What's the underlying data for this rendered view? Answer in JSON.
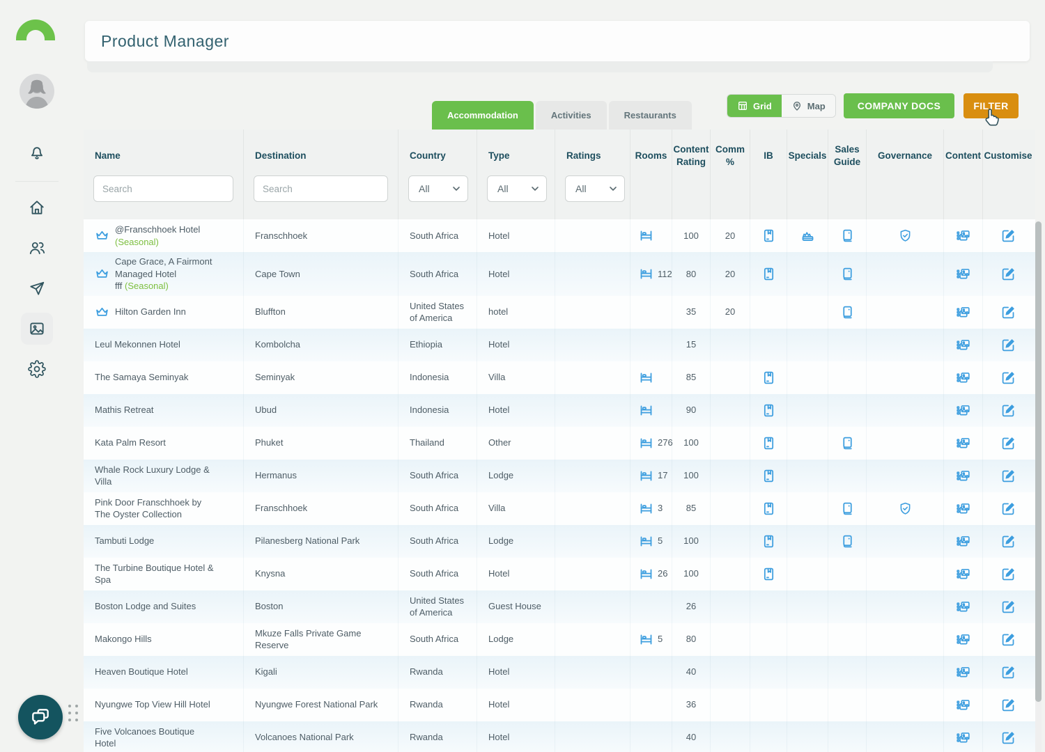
{
  "app": {
    "title": "Product Manager"
  },
  "colors": {
    "brand_green": "#6abf4c",
    "filter_orange": "#d98e10",
    "icon_blue": "#3d9edf",
    "teal_text": "#1d4e5e",
    "seasonal_green": "#7cbf3f",
    "chat_teal": "#14545f"
  },
  "sidebar": {
    "items": [
      {
        "name": "notifications-icon",
        "active": false
      },
      {
        "name": "home-icon",
        "active": false
      },
      {
        "name": "users-icon",
        "active": false
      },
      {
        "name": "send-icon",
        "active": false
      },
      {
        "name": "media-icon",
        "active": true
      },
      {
        "name": "settings-icon",
        "active": false
      }
    ],
    "chat_button": "chat-icon"
  },
  "toolbar": {
    "tabs": [
      {
        "label": "Accommodation",
        "active": true
      },
      {
        "label": "Activities",
        "active": false
      },
      {
        "label": "Restaurants",
        "active": false
      }
    ],
    "view_toggle": [
      {
        "label": "Grid",
        "icon": "grid-icon",
        "active": true
      },
      {
        "label": "Map",
        "icon": "map-pin-icon",
        "active": false
      }
    ],
    "company_docs_label": "COMPANY DOCS",
    "filter_label": "FILTER"
  },
  "table": {
    "columns": [
      "Name",
      "Destination",
      "Country",
      "Type",
      "Ratings",
      "Rooms",
      "Content Rating",
      "Comm %",
      "IB",
      "Specials",
      "Sales Guide",
      "Governance",
      "Content",
      "Customise"
    ],
    "filters": {
      "name_placeholder": "Search",
      "destination_placeholder": "Search",
      "country_value": "All",
      "type_value": "All",
      "ratings_value": "All"
    },
    "icon_legend": {
      "name_flag": "crown-icon",
      "rooms": "bed-icon",
      "ib": "book-bookmark-icon",
      "specials": "hamper-icon",
      "sales_guide": "guide-book-icon",
      "governance": "shield-check-icon",
      "content": "photos-icon",
      "customise": "edit-icon"
    },
    "rows": [
      {
        "crown": true,
        "name": "@Franschhoek Hotel",
        "seasonal": true,
        "sub": "",
        "destination": "Franschhoek",
        "country": "South Africa",
        "type": "Hotel",
        "bed": true,
        "rooms": "",
        "content_rating": "100",
        "comm": "20",
        "ib": true,
        "specials": true,
        "sales_guide": true,
        "governance": true
      },
      {
        "crown": true,
        "name": "Cape Grace, A Fairmont Managed Hotel",
        "seasonal": false,
        "sub": "fff",
        "sub_seasonal": true,
        "destination": "Cape Town",
        "country": "South Africa",
        "type": "Hotel",
        "bed": true,
        "rooms": "112",
        "content_rating": "80",
        "comm": "20",
        "ib": true,
        "specials": false,
        "sales_guide": true,
        "governance": false
      },
      {
        "crown": true,
        "name": "Hilton Garden Inn",
        "seasonal": false,
        "sub": "",
        "destination": "Bluffton",
        "country": "United States of America",
        "type": "hotel",
        "bed": false,
        "rooms": "",
        "content_rating": "35",
        "comm": "20",
        "ib": false,
        "specials": false,
        "sales_guide": true,
        "governance": false
      },
      {
        "crown": false,
        "name": "Leul Mekonnen Hotel",
        "seasonal": false,
        "sub": "",
        "destination": "Kombolcha",
        "country": "Ethiopia",
        "type": "Hotel",
        "bed": false,
        "rooms": "",
        "content_rating": "15",
        "comm": "",
        "ib": false,
        "specials": false,
        "sales_guide": false,
        "governance": false
      },
      {
        "crown": false,
        "name": "The Samaya Seminyak",
        "seasonal": false,
        "sub": "",
        "destination": "Seminyak",
        "country": "Indonesia",
        "type": "Villa",
        "bed": true,
        "rooms": "",
        "content_rating": "85",
        "comm": "",
        "ib": true,
        "specials": false,
        "sales_guide": false,
        "governance": false
      },
      {
        "crown": false,
        "name": "Mathis Retreat",
        "seasonal": false,
        "sub": "",
        "destination": "Ubud",
        "country": "Indonesia",
        "type": "Hotel",
        "bed": true,
        "rooms": "",
        "content_rating": "90",
        "comm": "",
        "ib": true,
        "specials": false,
        "sales_guide": false,
        "governance": false
      },
      {
        "crown": false,
        "name": "Kata Palm Resort",
        "seasonal": false,
        "sub": "",
        "destination": "Phuket",
        "country": "Thailand",
        "type": "Other",
        "bed": true,
        "rooms": "276",
        "content_rating": "100",
        "comm": "",
        "ib": true,
        "specials": false,
        "sales_guide": true,
        "governance": false
      },
      {
        "crown": false,
        "name": "Whale Rock Luxury Lodge & Villa",
        "seasonal": false,
        "sub": "",
        "destination": "Hermanus",
        "country": "South Africa",
        "type": "Lodge",
        "bed": true,
        "rooms": "17",
        "content_rating": "100",
        "comm": "",
        "ib": true,
        "specials": false,
        "sales_guide": false,
        "governance": false
      },
      {
        "crown": false,
        "name": "Pink Door Franschhoek by The Oyster Collection",
        "seasonal": false,
        "sub": "",
        "destination": "Franschhoek",
        "country": "South Africa",
        "type": "Villa",
        "bed": true,
        "rooms": "3",
        "content_rating": "85",
        "comm": "",
        "ib": true,
        "specials": false,
        "sales_guide": true,
        "governance": true
      },
      {
        "crown": false,
        "name": "Tambuti Lodge",
        "seasonal": false,
        "sub": "",
        "destination": "Pilanesberg National Park",
        "country": "South Africa",
        "type": "Lodge",
        "bed": true,
        "rooms": "5",
        "content_rating": "100",
        "comm": "",
        "ib": true,
        "specials": false,
        "sales_guide": true,
        "governance": false
      },
      {
        "crown": false,
        "name": "The Turbine Boutique Hotel & Spa",
        "seasonal": false,
        "sub": "",
        "destination": "Knysna",
        "country": "South Africa",
        "type": "Hotel",
        "bed": true,
        "rooms": "26",
        "content_rating": "100",
        "comm": "",
        "ib": true,
        "specials": false,
        "sales_guide": false,
        "governance": false
      },
      {
        "crown": false,
        "name": "Boston Lodge and Suites",
        "seasonal": false,
        "sub": "",
        "destination": "Boston",
        "country": "United States of America",
        "type": "Guest House",
        "bed": false,
        "rooms": "",
        "content_rating": "26",
        "comm": "",
        "ib": false,
        "specials": false,
        "sales_guide": false,
        "governance": false
      },
      {
        "crown": false,
        "name": "Makongo Hills",
        "seasonal": false,
        "sub": "",
        "destination": "Mkuze Falls Private Game Reserve",
        "country": "South Africa",
        "type": "Lodge",
        "bed": true,
        "rooms": "5",
        "content_rating": "80",
        "comm": "",
        "ib": false,
        "specials": false,
        "sales_guide": false,
        "governance": false
      },
      {
        "crown": false,
        "name": "Heaven Boutique Hotel",
        "seasonal": false,
        "sub": "",
        "destination": "Kigali",
        "country": "Rwanda",
        "type": "Hotel",
        "bed": false,
        "rooms": "",
        "content_rating": "40",
        "comm": "",
        "ib": false,
        "specials": false,
        "sales_guide": false,
        "governance": false
      },
      {
        "crown": false,
        "name": "Nyungwe Top View Hill Hotel",
        "seasonal": false,
        "sub": "",
        "destination": "Nyungwe Forest National Park",
        "country": "Rwanda",
        "type": "Hotel",
        "bed": false,
        "rooms": "",
        "content_rating": "36",
        "comm": "",
        "ib": false,
        "specials": false,
        "sales_guide": false,
        "governance": false
      },
      {
        "crown": false,
        "name": "Five Volcanoes Boutique Hotel",
        "seasonal": false,
        "sub": "",
        "destination": "Volcanoes National Park",
        "country": "Rwanda",
        "type": "Hotel",
        "bed": false,
        "rooms": "",
        "content_rating": "40",
        "comm": "",
        "ib": false,
        "specials": false,
        "sales_guide": false,
        "governance": false
      },
      {
        "partial": true,
        "crown": false,
        "name": "",
        "seasonal": false,
        "sub": "",
        "destination": "",
        "country": "",
        "type": "",
        "bed": false,
        "rooms": "",
        "content_rating": "",
        "comm": "",
        "ib": false,
        "specials": false,
        "sales_guide": false,
        "governance": false
      }
    ]
  }
}
